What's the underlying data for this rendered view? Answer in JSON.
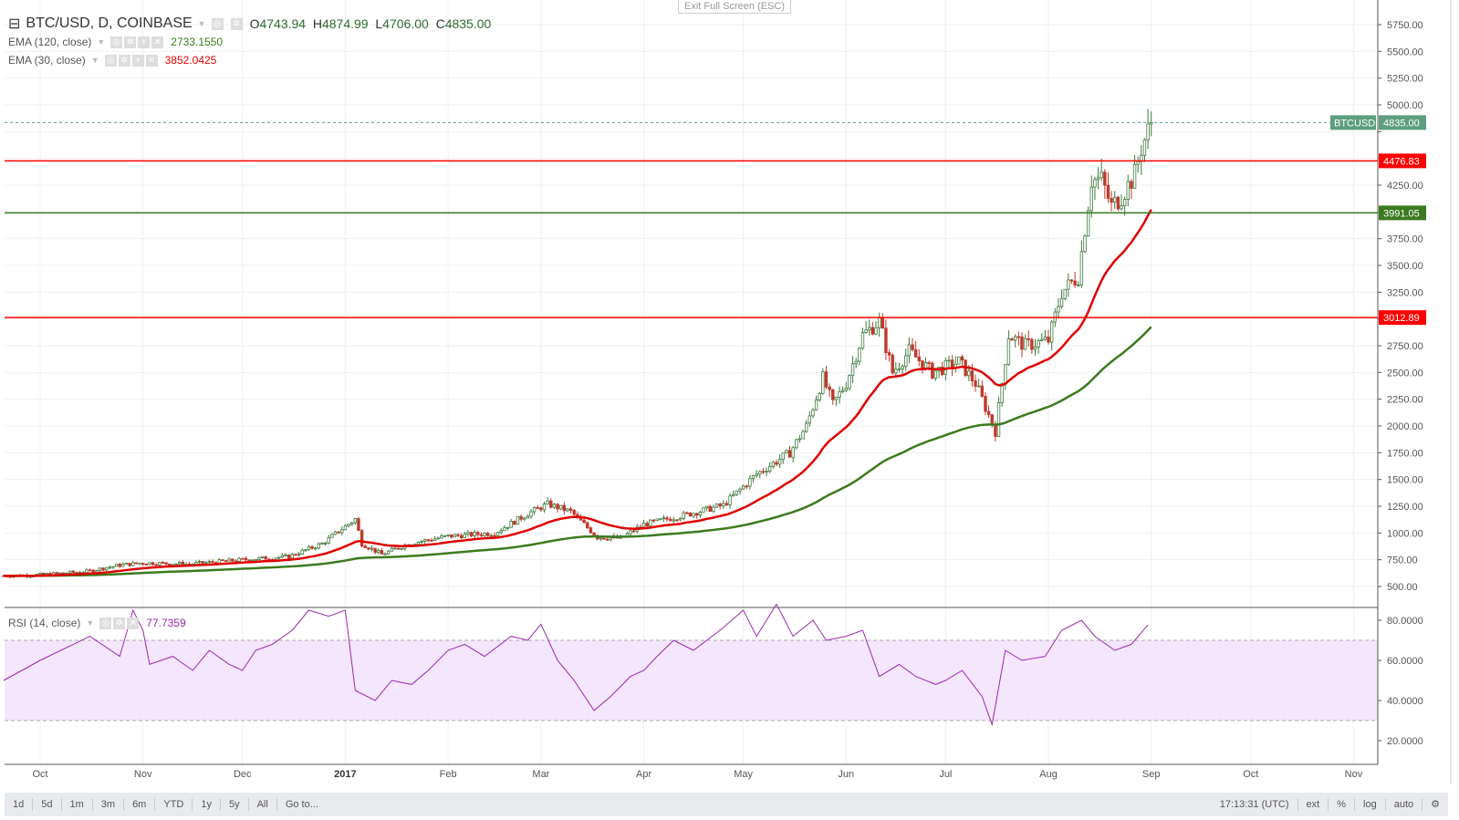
{
  "header": {
    "symbol": "BTC/USD, D, COINBASE",
    "open_label": "O",
    "open": "4743.94",
    "high_label": "H",
    "high": "4874.99",
    "low_label": "L",
    "low": "4706.00",
    "close_label": "C",
    "close": "4835.00"
  },
  "indicators": [
    {
      "name": "EMA (120, close)",
      "value": "2733.1550",
      "color": "#3c7a1f"
    },
    {
      "name": "EMA (30, close)",
      "value": "3852.0425",
      "color": "#e00000"
    }
  ],
  "rsi": {
    "name": "RSI (14, close)",
    "value": "77.7359",
    "color": "#9c27b0"
  },
  "exit_fullscreen": "Exit Full Screen (ESC)",
  "toolbar": {
    "ranges": [
      "1d",
      "5d",
      "1m",
      "3m",
      "6m",
      "YTD",
      "1y",
      "5y",
      "All",
      "Go to..."
    ],
    "time": "17:13:31 (UTC)",
    "options": [
      "ext",
      "%",
      "log",
      "auto"
    ]
  },
  "chart_data": {
    "type": "candlestick",
    "day_origin": "2016-10-01",
    "price_axis": {
      "range": [
        500,
        5750
      ],
      "step": 250
    },
    "x_ticks": [
      {
        "label": "Oct",
        "day": 0
      },
      {
        "label": "Nov",
        "day": 31
      },
      {
        "label": "Dec",
        "day": 61
      },
      {
        "label": "2017",
        "day": 92
      },
      {
        "label": "Feb",
        "day": 123
      },
      {
        "label": "Mar",
        "day": 151
      },
      {
        "label": "Apr",
        "day": 182
      },
      {
        "label": "May",
        "day": 212
      },
      {
        "label": "Jun",
        "day": 243
      },
      {
        "label": "Jul",
        "day": 273
      },
      {
        "label": "Aug",
        "day": 304
      },
      {
        "label": "Sep",
        "day": 335
      },
      {
        "label": "Oct",
        "day": 365
      },
      {
        "label": "Nov",
        "day": 396
      }
    ],
    "close_keypoints": [
      [
        -11,
        600
      ],
      [
        0,
        610
      ],
      [
        14,
        640
      ],
      [
        24,
        700
      ],
      [
        31,
        720
      ],
      [
        45,
        710
      ],
      [
        61,
        750
      ],
      [
        75,
        780
      ],
      [
        85,
        900
      ],
      [
        95,
        1130
      ],
      [
        97,
        900
      ],
      [
        103,
        800
      ],
      [
        111,
        900
      ],
      [
        123,
        970
      ],
      [
        137,
        1000
      ],
      [
        147,
        1180
      ],
      [
        153,
        1270
      ],
      [
        160,
        1200
      ],
      [
        168,
        960
      ],
      [
        175,
        950
      ],
      [
        182,
        1080
      ],
      [
        196,
        1180
      ],
      [
        206,
        1260
      ],
      [
        216,
        1550
      ],
      [
        226,
        1750
      ],
      [
        231,
        2000
      ],
      [
        236,
        2450
      ],
      [
        239,
        2200
      ],
      [
        243,
        2400
      ],
      [
        248,
        2850
      ],
      [
        253,
        2980
      ],
      [
        257,
        2500
      ],
      [
        262,
        2700
      ],
      [
        269,
        2500
      ],
      [
        277,
        2600
      ],
      [
        282,
        2400
      ],
      [
        288,
        1950
      ],
      [
        292,
        2850
      ],
      [
        297,
        2750
      ],
      [
        304,
        2800
      ],
      [
        308,
        3250
      ],
      [
        313,
        3400
      ],
      [
        317,
        4300
      ],
      [
        320,
        4300
      ],
      [
        323,
        4050
      ],
      [
        326,
        4150
      ],
      [
        330,
        4350
      ],
      [
        332,
        4600
      ],
      [
        335,
        4835
      ]
    ],
    "last_price": {
      "label": "BTCUSD",
      "value": "4835.00",
      "color": "#5d9e7e"
    },
    "horizontal_lines": [
      {
        "value": "4476.83",
        "color": "#ff0000"
      },
      {
        "value": "3991.05",
        "color": "#3c7a1f"
      },
      {
        "value": "3012.89",
        "color": "#ff0000"
      }
    ],
    "ema_periods": [
      120,
      30
    ],
    "rsi_axis": {
      "ticks": [
        "20.0000",
        "40.0000",
        "60.0000",
        "80.0000"
      ],
      "band": [
        30,
        70
      ]
    },
    "rsi_keypoints": [
      [
        -11,
        50
      ],
      [
        0,
        60
      ],
      [
        10,
        68
      ],
      [
        15,
        72
      ],
      [
        24,
        62
      ],
      [
        28,
        85
      ],
      [
        31,
        75
      ],
      [
        33,
        58
      ],
      [
        40,
        62
      ],
      [
        46,
        55
      ],
      [
        51,
        65
      ],
      [
        57,
        58
      ],
      [
        61,
        55
      ],
      [
        65,
        65
      ],
      [
        70,
        68
      ],
      [
        76,
        75
      ],
      [
        81,
        85
      ],
      [
        87,
        82
      ],
      [
        92,
        85
      ],
      [
        95,
        45
      ],
      [
        101,
        40
      ],
      [
        106,
        50
      ],
      [
        112,
        48
      ],
      [
        117,
        55
      ],
      [
        123,
        65
      ],
      [
        128,
        68
      ],
      [
        134,
        62
      ],
      [
        142,
        72
      ],
      [
        147,
        70
      ],
      [
        151,
        78
      ],
      [
        156,
        60
      ],
      [
        161,
        50
      ],
      [
        167,
        35
      ],
      [
        172,
        42
      ],
      [
        178,
        52
      ],
      [
        182,
        55
      ],
      [
        186,
        62
      ],
      [
        191,
        70
      ],
      [
        197,
        65
      ],
      [
        205,
        75
      ],
      [
        212,
        85
      ],
      [
        216,
        72
      ],
      [
        222,
        88
      ],
      [
        227,
        72
      ],
      [
        233,
        80
      ],
      [
        237,
        70
      ],
      [
        243,
        72
      ],
      [
        248,
        75
      ],
      [
        253,
        52
      ],
      [
        259,
        58
      ],
      [
        264,
        52
      ],
      [
        270,
        48
      ],
      [
        273,
        50
      ],
      [
        278,
        55
      ],
      [
        284,
        42
      ],
      [
        287,
        28
      ],
      [
        291,
        65
      ],
      [
        296,
        60
      ],
      [
        303,
        62
      ],
      [
        308,
        75
      ],
      [
        314,
        80
      ],
      [
        318,
        72
      ],
      [
        324,
        65
      ],
      [
        329,
        68
      ],
      [
        334,
        77.7
      ]
    ]
  }
}
